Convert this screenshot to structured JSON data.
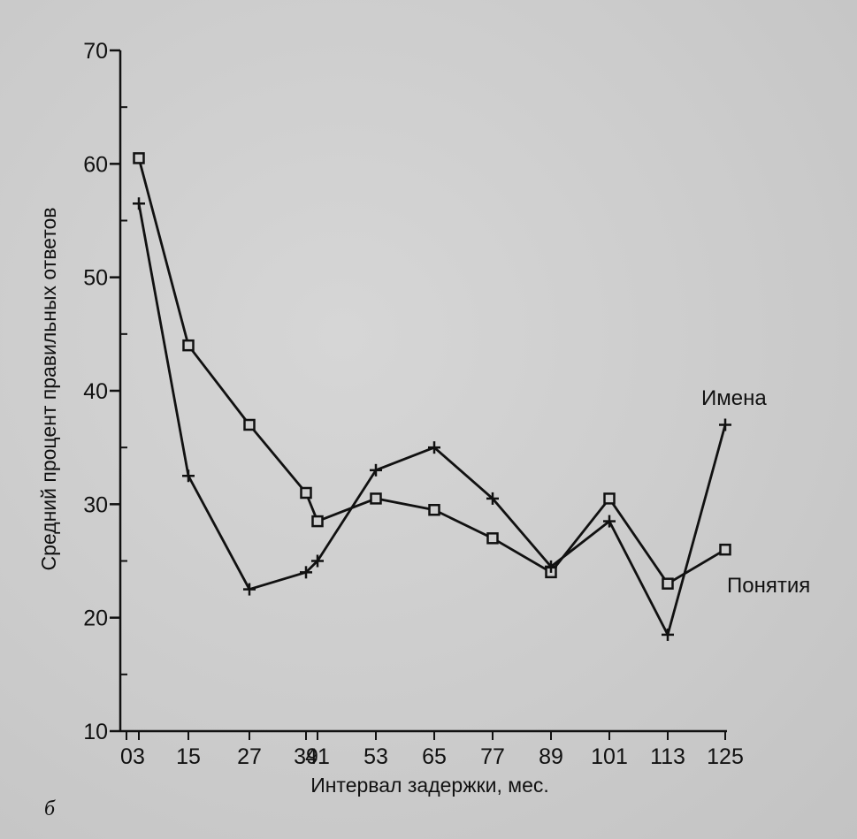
{
  "chart_data": {
    "type": "line",
    "xlabel": "Интервал задержки, мес.",
    "ylabel": "Средний процент правильных ответов",
    "ylim": [
      10,
      70
    ],
    "yticks": [
      10,
      20,
      30,
      40,
      50,
      60,
      70
    ],
    "xticks": [
      0,
      3,
      15,
      27,
      39,
      41,
      53,
      65,
      77,
      89,
      101,
      113,
      125
    ],
    "xtick_labels": [
      "0",
      "3",
      "15",
      "27",
      "39",
      "41",
      "53",
      "65",
      "77",
      "89",
      "101",
      "113",
      "125"
    ],
    "grid": false,
    "panel_label": "б",
    "series": [
      {
        "name": "Понятия",
        "marker": "square",
        "x": [
          3,
          15,
          27,
          39,
          41,
          53,
          65,
          77,
          89,
          101,
          113,
          125
        ],
        "values": [
          60.5,
          44,
          37,
          31,
          28.5,
          30.5,
          29.5,
          27,
          24,
          30.5,
          23,
          26
        ]
      },
      {
        "name": "Имена",
        "marker": "plus",
        "x": [
          3,
          15,
          27,
          39,
          41,
          53,
          65,
          77,
          89,
          101,
          113,
          125
        ],
        "values": [
          56.5,
          32.5,
          22.5,
          24,
          25,
          33,
          35,
          30.5,
          24.5,
          28.5,
          18.5,
          37
        ]
      }
    ]
  }
}
